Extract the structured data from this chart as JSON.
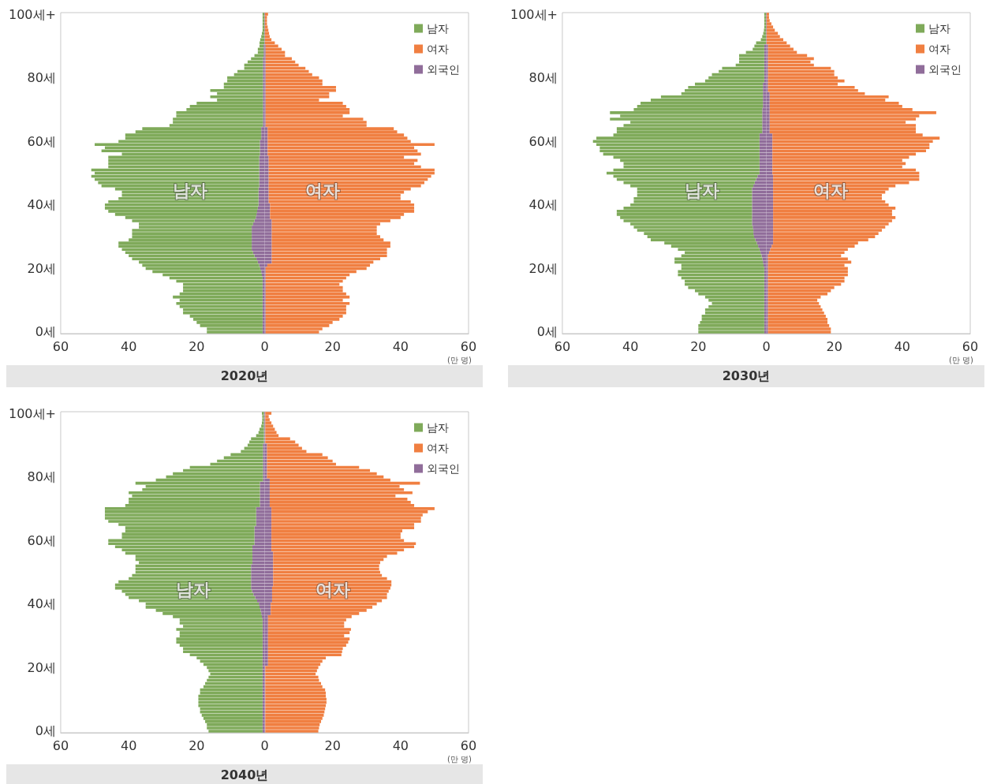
{
  "chart_data": [
    {
      "type": "bar",
      "title": "2020년",
      "orientation": "horizontal",
      "stacked": true,
      "xlabel": "(만 명)",
      "legend": "top right",
      "categories": [
        "100세+",
        null,
        null,
        null,
        null,
        null,
        null,
        null,
        null,
        null,
        null,
        null,
        null,
        null,
        null,
        null,
        null,
        null,
        null,
        null,
        "80세",
        null,
        null,
        null,
        null,
        null,
        null,
        null,
        null,
        null,
        null,
        null,
        null,
        null,
        null,
        null,
        null,
        null,
        null,
        null,
        "60세",
        null,
        null,
        null,
        null,
        null,
        null,
        null,
        null,
        null,
        null,
        null,
        null,
        null,
        null,
        null,
        null,
        null,
        null,
        null,
        "40세",
        null,
        null,
        null,
        null,
        null,
        null,
        null,
        null,
        null,
        null,
        null,
        null,
        null,
        null,
        null,
        null,
        null,
        null,
        null,
        "20세",
        null,
        null,
        null,
        null,
        null,
        null,
        null,
        null,
        null,
        null,
        null,
        null,
        null,
        null,
        null,
        null,
        null,
        null,
        null,
        "0세"
      ],
      "xlim": [
        -60,
        60
      ],
      "xticks": [
        {
          "value": -60,
          "label": "60"
        },
        {
          "value": -40,
          "label": "40"
        },
        {
          "value": -20,
          "label": "20"
        },
        0,
        20,
        40,
        60
      ],
      "annotations": [
        {
          "text": "남자",
          "x": -22,
          "y": "40세"
        },
        {
          "text": "여자",
          "x": 17,
          "y": "40세"
        }
      ],
      "series": [
        {
          "name": "외국인",
          "color": "#906d9a",
          "values": [
            -0.1,
            -0.1,
            -0.1,
            -0.1,
            -0.1,
            -0.1,
            -0.1,
            -0.1,
            -0.1,
            -0.1,
            -0.3,
            -0.3,
            -0.3,
            -0.3,
            -0.5,
            -0.5,
            -0.5,
            -0.5,
            -0.5,
            -0.5,
            -0.5,
            -0.5,
            -0.5,
            -0.5,
            -0.5,
            -0.5,
            -0.5,
            -0.5,
            -0.5,
            -0.5,
            -0.5,
            -0.5,
            -0.5,
            -0.5,
            -0.5,
            -0.5,
            -1,
            -1,
            -1,
            -1,
            -1.4,
            -1.4,
            -1.4,
            -1.4,
            -1.4,
            -1.6,
            -1.6,
            -1.6,
            -1.6,
            -1.6,
            -1.6,
            -1.6,
            -1.6,
            -1.6,
            -1.6,
            -1.8,
            -1.8,
            -1.8,
            -1.8,
            -1.8,
            -1.8,
            -2,
            -2.2,
            -2.4,
            -2.6,
            -3,
            -3.4,
            -3.8,
            -3.8,
            -3.8,
            -3.8,
            -3.8,
            -3.8,
            -3.8,
            -3.8,
            -3.4,
            -3,
            -2.4,
            -2,
            -1.6,
            -1.3,
            -1,
            -0.8,
            -0.6,
            -0.6,
            -0.6,
            -0.6,
            -0.6,
            -0.6,
            -0.6,
            -0.6,
            -0.6,
            -0.6,
            -0.6,
            -0.6,
            -0.6,
            -0.6,
            -0.6,
            -0.6,
            -0.6,
            -0.6
          ]
        },
        {
          "name": "남자",
          "color": "#7faa5a",
          "values": [
            -0.5,
            -0.5,
            -0.5,
            -0.5,
            -0.5,
            -0.5,
            -0.7,
            -0.9,
            -1.2,
            -1.4,
            -1.2,
            -1.7,
            -1.7,
            -2.7,
            -3.5,
            -4.5,
            -5.5,
            -5.5,
            -7.5,
            -8.5,
            -10.5,
            -10.5,
            -11.5,
            -11.5,
            -15.5,
            -13.5,
            -15.5,
            -13.5,
            -19.5,
            -21.5,
            -22.5,
            -25.5,
            -25.5,
            -26.5,
            -26.5,
            -27.5,
            -35,
            -37,
            -40,
            -40,
            -41.6,
            -48.6,
            -45.6,
            -46.6,
            -40.6,
            -44.4,
            -44.4,
            -44.4,
            -44.4,
            -49.4,
            -48.4,
            -49.4,
            -48.4,
            -47.4,
            -46.4,
            -42.2,
            -40.2,
            -40.2,
            -41.2,
            -44.2,
            -45.2,
            -45,
            -43.8,
            -41.6,
            -38.4,
            -36,
            -33.6,
            -33.2,
            -35.2,
            -35.2,
            -35.2,
            -36.2,
            -39.2,
            -39.2,
            -38.2,
            -37.6,
            -37,
            -36.6,
            -35,
            -34.4,
            -33.7,
            -32,
            -29.2,
            -27.4,
            -25.4,
            -23.4,
            -23.4,
            -23.4,
            -24.4,
            -26.4,
            -24.4,
            -25.4,
            -24.4,
            -23.4,
            -23.4,
            -21.4,
            -20.4,
            -19.4,
            -18.4,
            -16.4,
            -16.4
          ]
        },
        {
          "color": "#906d9a",
          "values": [
            0.1,
            0.1,
            0.1,
            0.1,
            0.1,
            0.1,
            0.1,
            0.1,
            0.1,
            0.1,
            0.3,
            0.3,
            0.3,
            0.3,
            0.3,
            0.3,
            0.3,
            0.3,
            0.3,
            0.3,
            0.3,
            0.3,
            0.3,
            0.3,
            0.3,
            0.3,
            0.3,
            0.3,
            0.3,
            0.3,
            0.3,
            0.3,
            0.3,
            0.3,
            0.3,
            0.3,
            0.9,
            0.9,
            0.9,
            0.9,
            0.9,
            0.9,
            0.9,
            0.9,
            0.9,
            1.2,
            1.2,
            1.2,
            1.2,
            1.2,
            1.2,
            1.2,
            1.2,
            1.2,
            1.2,
            1.2,
            1.2,
            1.2,
            1.2,
            1.2,
            1.6,
            1.6,
            1.6,
            1.6,
            1.6,
            2.1,
            2.1,
            2.1,
            2.1,
            2.1,
            2.1,
            2.1,
            2.1,
            2.1,
            2.1,
            2.1,
            2.1,
            2.1,
            2.1,
            0.8,
            0.3,
            0.3,
            0.3,
            0.3,
            0.3,
            0.3,
            0.3,
            0.3,
            0.3,
            0.3,
            0.3,
            0.3,
            0.3,
            0.3,
            0.3,
            0.3,
            0.3,
            0.3,
            0.3,
            0.3,
            0.3
          ]
        },
        {
          "name": "여자",
          "color": "#f07f41",
          "values": [
            0.9,
            0.6,
            0.6,
            0.6,
            0.8,
            1,
            1.2,
            1.4,
            1.9,
            2.9,
            3.7,
            4.7,
            5.7,
            5.7,
            7.7,
            8.7,
            9.7,
            11.7,
            12.7,
            13.7,
            15.7,
            16.7,
            16.7,
            20.7,
            20.7,
            18.7,
            18.7,
            15.7,
            22.7,
            23.7,
            24.7,
            24.7,
            22.7,
            28.7,
            29.7,
            29.7,
            37.1,
            38.1,
            40.1,
            41.1,
            42.1,
            49.1,
            43.1,
            44.1,
            45.1,
            39.8,
            43.8,
            42.8,
            44.8,
            48.8,
            48.8,
            47.8,
            46.8,
            45.8,
            44.8,
            41.8,
            39.8,
            38.8,
            38.8,
            41.8,
            42.4,
            42.4,
            42.4,
            39.4,
            38.4,
            34.9,
            31.9,
            30.9,
            30.9,
            30.9,
            31.9,
            32.9,
            34.9,
            34.9,
            33.9,
            33.9,
            33.9,
            31.9,
            29.9,
            30.2,
            29.7,
            26.7,
            24.7,
            23.7,
            22.7,
            21.7,
            22.7,
            22.7,
            23.7,
            24.7,
            22.7,
            24.7,
            23.7,
            23.7,
            23.7,
            22.7,
            21.7,
            19.7,
            18.7,
            16.7,
            15.7
          ]
        }
      ]
    },
    {
      "type": "bar",
      "title": "2030년",
      "orientation": "horizontal",
      "stacked": true,
      "xlabel": "(만 명)",
      "legend": "top right",
      "categories": [
        "100세+",
        null,
        null,
        null,
        null,
        null,
        null,
        null,
        null,
        null,
        null,
        null,
        null,
        null,
        null,
        null,
        null,
        null,
        null,
        null,
        "80세",
        null,
        null,
        null,
        null,
        null,
        null,
        null,
        null,
        null,
        null,
        null,
        null,
        null,
        null,
        null,
        null,
        null,
        null,
        null,
        "60세",
        null,
        null,
        null,
        null,
        null,
        null,
        null,
        null,
        null,
        null,
        null,
        null,
        null,
        null,
        null,
        null,
        null,
        null,
        null,
        "40세",
        null,
        null,
        null,
        null,
        null,
        null,
        null,
        null,
        null,
        null,
        null,
        null,
        null,
        null,
        null,
        null,
        null,
        null,
        null,
        "20세",
        null,
        null,
        null,
        null,
        null,
        null,
        null,
        null,
        null,
        null,
        null,
        null,
        null,
        null,
        null,
        null,
        null,
        null,
        null,
        "0세"
      ],
      "xlim": [
        -60,
        60
      ],
      "xticks": [
        {
          "value": -60,
          "label": "60"
        },
        {
          "value": -40,
          "label": "40"
        },
        {
          "value": -20,
          "label": "20"
        },
        0,
        20,
        40,
        60
      ],
      "annotations": [
        {
          "text": "남자",
          "x": -19,
          "y": "40세"
        },
        {
          "text": "여자",
          "x": 19,
          "y": "40세"
        }
      ],
      "series": [
        {
          "name": "외국인",
          "color": "#906d9a",
          "values": [
            -0.1,
            -0.1,
            -0.1,
            -0.1,
            -0.1,
            -0.1,
            -0.1,
            -0.1,
            -0.1,
            -0.1,
            -0.6,
            -0.6,
            -0.6,
            -0.6,
            -0.6,
            -0.6,
            -0.6,
            -0.6,
            -0.6,
            -0.6,
            -0.6,
            -0.6,
            -1,
            -1,
            -1,
            -1,
            -1,
            -1,
            -1,
            -1,
            -1.2,
            -1.2,
            -1.2,
            -1.2,
            -1.2,
            -1.2,
            -1.2,
            -1.2,
            -2,
            -2,
            -2,
            -2,
            -2,
            -2,
            -2,
            -2,
            -2,
            -2,
            -2,
            -2,
            -2,
            -2.6,
            -3,
            -3.4,
            -3.8,
            -4.2,
            -4.2,
            -4.2,
            -4.2,
            -4.2,
            -4.2,
            -4.2,
            -4.2,
            -4.2,
            -4.2,
            -4.2,
            -4.2,
            -4,
            -3.8,
            -3.8,
            -3.6,
            -3.2,
            -2.8,
            -2.4,
            -2,
            -1.7,
            -1.4,
            -1.2,
            -1,
            -0.8,
            -0.6,
            -0.6,
            -0.6,
            -0.6,
            -0.6,
            -0.6,
            -0.6,
            -0.6,
            -0.6,
            -0.6,
            -0.6,
            -0.6,
            -0.6,
            -0.6,
            -0.6,
            -0.6,
            -0.6,
            -0.6,
            -0.6,
            -0.6,
            -0.6
          ]
        },
        {
          "name": "남자",
          "color": "#7faa5a",
          "values": [
            -0.5,
            -0.5,
            -0.5,
            -0.5,
            -0.5,
            -0.6,
            -0.8,
            -1.1,
            -1.5,
            -2.9,
            -2.9,
            -3.4,
            -5.4,
            -7.4,
            -7.4,
            -7.4,
            -8.4,
            -12.4,
            -13.4,
            -15.4,
            -16.4,
            -17.4,
            -20,
            -22,
            -23,
            -24,
            -30,
            -33,
            -36,
            -37,
            -37.8,
            -44.8,
            -41.8,
            -44.8,
            -38.8,
            -40.8,
            -42.8,
            -42.8,
            -43,
            -48,
            -49,
            -48,
            -47,
            -47,
            -46,
            -43,
            -41,
            -40,
            -40,
            -43,
            -45,
            -42.4,
            -41,
            -38.6,
            -36.2,
            -33.8,
            -33.8,
            -33.8,
            -34.8,
            -34.8,
            -35.8,
            -37.8,
            -39.8,
            -39.8,
            -38.8,
            -37.8,
            -35.8,
            -35,
            -34.2,
            -32.2,
            -31.4,
            -30.8,
            -27.2,
            -25.6,
            -24,
            -22.3,
            -23.6,
            -25.8,
            -26,
            -24.2,
            -24.4,
            -25.4,
            -25.4,
            -24.4,
            -23.4,
            -23.4,
            -22.4,
            -20.4,
            -19.4,
            -17.4,
            -16.4,
            -15.4,
            -16.4,
            -17.4,
            -17.4,
            -18.4,
            -18.4,
            -18.9,
            -19.4,
            -19.4,
            -19.4
          ]
        },
        {
          "color": "#906d9a",
          "values": [
            0.1,
            0.1,
            0.1,
            0.1,
            0.1,
            0.1,
            0.1,
            0.1,
            0.1,
            0.1,
            0.5,
            0.5,
            0.5,
            0.5,
            0.5,
            0.5,
            0.5,
            0.5,
            0.5,
            0.5,
            0.5,
            0.5,
            0.5,
            0.5,
            0.5,
            1,
            1,
            1,
            1,
            1,
            1,
            1,
            1,
            1,
            1,
            1,
            1,
            1,
            1.8,
            1.8,
            1.8,
            1.8,
            1.8,
            1.8,
            1.8,
            1.8,
            1.8,
            1.8,
            1.8,
            1.8,
            1.8,
            2,
            2,
            2,
            2,
            2,
            2,
            2,
            2,
            2,
            2,
            2,
            2,
            2,
            2,
            2,
            2,
            2,
            2,
            2,
            2,
            2,
            2,
            1.6,
            1.2,
            0.8,
            0.5,
            0.5,
            0.5,
            0.5,
            0.5,
            0.5,
            0.5,
            0.5,
            0.5,
            0.5,
            0.5,
            0.5,
            0.5,
            0.5,
            0.5,
            0.5,
            0.5,
            0.5,
            0.5,
            0.5,
            0.5,
            0.5,
            0.5,
            0.5,
            0.5
          ]
        },
        {
          "name": "여자",
          "color": "#f07f41",
          "values": [
            0.7,
            0.7,
            0.9,
            1.4,
            1.9,
            2.4,
            3.3,
            3.9,
            4.9,
            5.9,
            6.5,
            7.5,
            8.5,
            11.5,
            13.5,
            12.5,
            13.5,
            18.5,
            19.5,
            19.5,
            20.5,
            22.5,
            20.5,
            25.5,
            26.5,
            28,
            35,
            34,
            38,
            39,
            42,
            49,
            44,
            43,
            40,
            43,
            43,
            43,
            44.2,
            49.2,
            47.2,
            46.2,
            46.2,
            45.2,
            42.2,
            40.2,
            38.2,
            39.2,
            38.2,
            42.2,
            43.2,
            43,
            43,
            40,
            36,
            34,
            33,
            32,
            32,
            33,
            34,
            36,
            35,
            35,
            36,
            35,
            34,
            33,
            32,
            31,
            30,
            28,
            25,
            24.4,
            22.8,
            22.2,
            21.5,
            23.5,
            24.5,
            22.5,
            23.5,
            23.5,
            23.5,
            22.5,
            22.5,
            21.5,
            19.5,
            18.5,
            17.5,
            15.5,
            14.5,
            15,
            15.5,
            16,
            16.5,
            17,
            17.5,
            17.5,
            18,
            18.5,
            18.5
          ]
        }
      ]
    },
    {
      "type": "bar",
      "title": "2040년",
      "orientation": "horizontal",
      "stacked": true,
      "xlabel": "(만 명)",
      "legend": "top right",
      "categories": [
        "100세+",
        null,
        null,
        null,
        null,
        null,
        null,
        null,
        null,
        null,
        null,
        null,
        null,
        null,
        null,
        null,
        null,
        null,
        null,
        null,
        "80세",
        null,
        null,
        null,
        null,
        null,
        null,
        null,
        null,
        null,
        null,
        null,
        null,
        null,
        null,
        null,
        null,
        null,
        null,
        null,
        "60세",
        null,
        null,
        null,
        null,
        null,
        null,
        null,
        null,
        null,
        null,
        null,
        null,
        null,
        null,
        null,
        null,
        null,
        null,
        null,
        "40세",
        null,
        null,
        null,
        null,
        null,
        null,
        null,
        null,
        null,
        null,
        null,
        null,
        null,
        null,
        null,
        null,
        null,
        null,
        null,
        "20세",
        null,
        null,
        null,
        null,
        null,
        null,
        null,
        null,
        null,
        null,
        null,
        null,
        null,
        null,
        null,
        null,
        null,
        null,
        null,
        "0세"
      ],
      "xlim": [
        -60,
        60
      ],
      "xticks": [
        {
          "value": -60,
          "label": "60"
        },
        {
          "value": -40,
          "label": "40"
        },
        {
          "value": -20,
          "label": "20"
        },
        0,
        20,
        40,
        60
      ],
      "annotations": [
        {
          "text": "남자",
          "x": -21,
          "y": "40세"
        },
        {
          "text": "여자",
          "x": 20,
          "y": "40세"
        }
      ],
      "series": [
        {
          "name": "외국인",
          "color": "#906d9a",
          "values": [
            -0.2,
            -0.2,
            -0.2,
            -0.2,
            -0.2,
            -0.2,
            -0.2,
            -0.2,
            -0.2,
            -0.2,
            -0.5,
            -0.5,
            -0.5,
            -0.5,
            -0.5,
            -0.5,
            -0.5,
            -0.5,
            -0.5,
            -0.5,
            -0.5,
            -0.5,
            -1.4,
            -1.4,
            -1.4,
            -1.4,
            -1.4,
            -1.4,
            -1.4,
            -1.4,
            -2.5,
            -2.5,
            -2.5,
            -2.5,
            -2.5,
            -2.5,
            -3,
            -3,
            -3,
            -3,
            -3,
            -3,
            -3.6,
            -3.6,
            -3.6,
            -3.6,
            -3.6,
            -3.6,
            -4,
            -4,
            -4,
            -4,
            -4,
            -4,
            -4,
            -4,
            -3.7,
            -3.3,
            -2.8,
            -2.2,
            -1.7,
            -1.5,
            -1.2,
            -1,
            -0.8,
            -0.6,
            -0.6,
            -0.6,
            -0.6,
            -0.6,
            -0.6,
            -0.6,
            -0.6,
            -0.6,
            -0.6,
            -0.6,
            -0.6,
            -0.6,
            -0.6,
            -0.6,
            -0.6,
            -0.6,
            -0.6,
            -0.6,
            -0.6,
            -0.6,
            -0.6,
            -0.6,
            -0.6,
            -0.6,
            -0.6,
            -0.6,
            -0.6,
            -0.6,
            -0.6,
            -0.6,
            -0.6,
            -0.6,
            -0.6,
            -0.6,
            -0.6
          ]
        },
        {
          "name": "남자",
          "color": "#7faa5a",
          "values": [
            -0.6,
            -0.5,
            -0.5,
            -0.6,
            -0.8,
            -1.3,
            -1.6,
            -2.3,
            -3.8,
            -4.3,
            -4.5,
            -5.5,
            -6.5,
            -9.5,
            -11.5,
            -13.5,
            -15.5,
            -21.5,
            -23.5,
            -26.5,
            -28.5,
            -31.5,
            -36.6,
            -33.6,
            -34.6,
            -38.6,
            -37.6,
            -38.6,
            -38.6,
            -39.6,
            -44.5,
            -44.5,
            -44.5,
            -44.5,
            -43.5,
            -40.5,
            -38,
            -38,
            -39,
            -39,
            -43,
            -43,
            -40.4,
            -38.4,
            -37.4,
            -34.4,
            -34.4,
            -33.4,
            -34,
            -34,
            -34,
            -35,
            -36,
            -39,
            -40,
            -40,
            -38.3,
            -37.7,
            -37.2,
            -34.8,
            -33.3,
            -33.5,
            -30.8,
            -29,
            -26.2,
            -24.4,
            -24.4,
            -23.4,
            -25.4,
            -24.4,
            -24.4,
            -25.4,
            -25.4,
            -24.4,
            -23.4,
            -23.4,
            -21.4,
            -19.4,
            -18.4,
            -17.4,
            -16.4,
            -15.9,
            -15.4,
            -15.9,
            -16.4,
            -16.9,
            -17.4,
            -18.4,
            -18.4,
            -18.9,
            -18.9,
            -18.9,
            -18.9,
            -18.4,
            -18.4,
            -17.9,
            -17.4,
            -16.9,
            -16.4,
            -16.4,
            -15.9
          ]
        },
        {
          "color": "#906d9a",
          "values": [
            0.2,
            0.2,
            0.2,
            0.2,
            0.2,
            0.2,
            0.2,
            0.2,
            0.2,
            0.2,
            0.7,
            0.7,
            0.7,
            0.7,
            0.7,
            0.7,
            0.7,
            0.7,
            0.7,
            0.7,
            0.7,
            1.5,
            1.5,
            1.5,
            1.5,
            1.5,
            1.5,
            1.5,
            1.5,
            1.5,
            2,
            2,
            2,
            2,
            2,
            2,
            2,
            2,
            2,
            2,
            2,
            2,
            2,
            2,
            2.5,
            2.5,
            2.5,
            2.5,
            2.5,
            2.5,
            2.5,
            2.5,
            2.5,
            2.5,
            2.5,
            2.2,
            2.2,
            2.2,
            2.2,
            2.2,
            1.8,
            1.8,
            1.8,
            1.8,
            1,
            1,
            1,
            1,
            1,
            1,
            1,
            1,
            1,
            1,
            1,
            1,
            1,
            1,
            1,
            1,
            0.2,
            0.2,
            0.2,
            0.2,
            0.2,
            0.2,
            0.2,
            0.2,
            0.2,
            0.2,
            0.2,
            0.2,
            0.2,
            0.2,
            0.2,
            0.2,
            0.2,
            0.2,
            0.2,
            0.2,
            0.2
          ]
        },
        {
          "name": "여자",
          "color": "#f07f41",
          "values": [
            1.8,
            1,
            1.3,
            1.8,
            2.3,
            2.8,
            3.3,
            3.9,
            7.3,
            8.8,
            9.3,
            10.3,
            11.6,
            16.3,
            17.9,
            19.3,
            20.3,
            27.1,
            30.3,
            32.3,
            34.3,
            35.5,
            44.2,
            38.2,
            39.5,
            42,
            37,
            40.5,
            41.5,
            42.5,
            48,
            46,
            44.5,
            44,
            44,
            42,
            42,
            38.5,
            38,
            38,
            39,
            42.5,
            42,
            39,
            36.5,
            33.5,
            32.5,
            31.5,
            31.2,
            31.2,
            31.5,
            32,
            33.5,
            34.8,
            34.8,
            34.8,
            34.3,
            33.8,
            33.8,
            32.3,
            31.2,
            29.9,
            28.2,
            26,
            24.6,
            23,
            22.4,
            22.4,
            24.4,
            24,
            22.4,
            24,
            23.6,
            23,
            22,
            21.8,
            21.6,
            17,
            16,
            15.4,
            15.6,
            15.2,
            14.8,
            15.6,
            15.8,
            16.4,
            16.8,
            17.6,
            17.8,
            17.8,
            18,
            18,
            17.8,
            17.6,
            17.4,
            17.2,
            16.8,
            16.4,
            16,
            15.8,
            15.6
          ]
        }
      ]
    }
  ]
}
